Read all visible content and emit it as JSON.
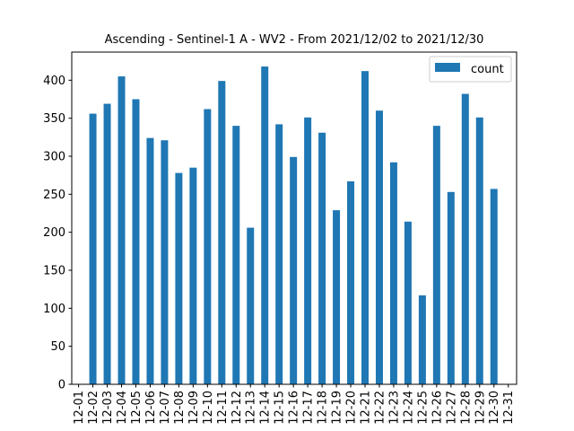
{
  "chart_data": {
    "type": "bar",
    "title": "Ascending - Sentinel-1 A - WV2 - From 2021/12/02 to 2021/12/30",
    "xlabel": "",
    "ylabel": "",
    "categories": [
      "12-01",
      "12-02",
      "12-03",
      "12-04",
      "12-05",
      "12-06",
      "12-07",
      "12-08",
      "12-09",
      "12-10",
      "12-11",
      "12-12",
      "12-13",
      "12-14",
      "12-15",
      "12-16",
      "12-17",
      "12-18",
      "12-19",
      "12-20",
      "12-21",
      "12-22",
      "12-23",
      "12-24",
      "12-25",
      "12-26",
      "12-27",
      "12-28",
      "12-29",
      "12-30",
      "12-31"
    ],
    "series": [
      {
        "name": "count",
        "color": "#1f77b4",
        "values": [
          null,
          356,
          369,
          405,
          375,
          324,
          321,
          278,
          285,
          362,
          399,
          340,
          206,
          418,
          342,
          299,
          351,
          331,
          229,
          267,
          412,
          360,
          292,
          214,
          117,
          340,
          253,
          382,
          351,
          257,
          null
        ]
      }
    ],
    "ylim": [
      0,
      437
    ],
    "yticks": [
      0,
      50,
      100,
      150,
      200,
      250,
      300,
      350,
      400
    ],
    "grid": false,
    "legend_position": "top-right"
  }
}
